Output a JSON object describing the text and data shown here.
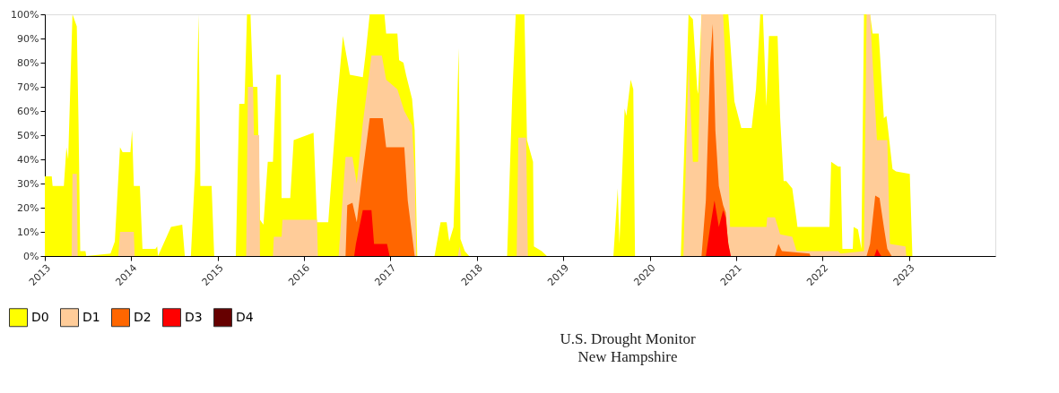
{
  "chart_data": {
    "type": "area",
    "title": "U.S. Drought Monitor",
    "subtitle": "New Hampshire",
    "xlim": [
      2013,
      2024
    ],
    "xticks": [
      2013,
      2014,
      2015,
      2016,
      2017,
      2018,
      2019,
      2020,
      2021,
      2022,
      2023
    ],
    "ylim": [
      0,
      100
    ],
    "yticks": [
      {
        "value": 0,
        "label": "0%"
      },
      {
        "value": 10,
        "label": "10%"
      },
      {
        "value": 20,
        "label": "20%"
      },
      {
        "value": 30,
        "label": "30%"
      },
      {
        "value": 40,
        "label": "40%"
      },
      {
        "value": 50,
        "label": "50%"
      },
      {
        "value": 60,
        "label": "60%"
      },
      {
        "value": 70,
        "label": "70%"
      },
      {
        "value": 80,
        "label": "80%"
      },
      {
        "value": 90,
        "label": "90%"
      },
      {
        "value": 100,
        "label": "100%"
      }
    ],
    "legend": "bottom left",
    "series": [
      {
        "name": "D0",
        "color": "#ffff00",
        "x": [
          2013.0,
          2013.08,
          2013.09,
          2013.22,
          2013.25,
          2013.27,
          2013.32,
          2013.37,
          2013.39,
          2013.41,
          2013.47,
          2013.48,
          2013.76,
          2013.81,
          2013.87,
          2013.9,
          2013.99,
          2014.01,
          2014.03,
          2014.1,
          2014.13,
          2014.28,
          2014.3,
          2014.31,
          2014.46,
          2014.59,
          2014.62,
          2014.69,
          2014.74,
          2014.78,
          2014.8,
          2014.93,
          2014.96,
          2015.21,
          2015.25,
          2015.31,
          2015.34,
          2015.38,
          2015.41,
          2015.46,
          2015.49,
          2015.53,
          2015.58,
          2015.64,
          2015.68,
          2015.73,
          2015.74,
          2015.84,
          2015.88,
          2016.11,
          2016.15,
          2016.28,
          2016.38,
          2016.45,
          2016.53,
          2016.68,
          2016.71,
          2016.76,
          2016.93,
          2016.95,
          2017.08,
          2017.1,
          2017.15,
          2017.18,
          2017.25,
          2017.28,
          2017.31,
          2017.51,
          2017.58,
          2017.65,
          2017.68,
          2017.73,
          2017.75,
          2017.79,
          2017.81,
          2017.86,
          2017.91,
          2018.08,
          2018.35,
          2018.41,
          2018.45,
          2018.55,
          2018.58,
          2018.65,
          2018.66,
          2018.75,
          2018.81,
          2019.58,
          2019.63,
          2019.65,
          2019.71,
          2019.73,
          2019.78,
          2019.81,
          2019.83,
          2020.36,
          2020.45,
          2020.5,
          2020.55,
          2020.56,
          2020.6,
          2020.91,
          2020.98,
          2021.06,
          2021.18,
          2021.23,
          2021.28,
          2021.31,
          2021.35,
          2021.38,
          2021.48,
          2021.51,
          2021.55,
          2021.58,
          2021.65,
          2021.7,
          2021.71,
          2022.08,
          2022.1,
          2022.18,
          2022.21,
          2022.23,
          2022.35,
          2022.36,
          2022.41,
          2022.45,
          2022.48,
          2022.55,
          2022.58,
          2022.65,
          2022.71,
          2022.74,
          2022.76,
          2022.81,
          2022.85,
          2023.01,
          2023.04
        ],
        "values": [
          33,
          33,
          29,
          29,
          45,
          40,
          100,
          95,
          55,
          2,
          2,
          0,
          1,
          6,
          45,
          43,
          43,
          52,
          29,
          29,
          3,
          3,
          4,
          0,
          12,
          13,
          0,
          0,
          36,
          100,
          29,
          29,
          0,
          0,
          63,
          63,
          100,
          100,
          70,
          70,
          15,
          13,
          39,
          39,
          75,
          75,
          24,
          24,
          48,
          51,
          14,
          14,
          63,
          91,
          75,
          74,
          83,
          100,
          100,
          92,
          92,
          81,
          80,
          75,
          65,
          52,
          0,
          0,
          14,
          14,
          6,
          12,
          35,
          86,
          7,
          2,
          0,
          0,
          0,
          67,
          100,
          100,
          48,
          39,
          4,
          2,
          0,
          0,
          28,
          5,
          61,
          58,
          73,
          69,
          0,
          0,
          100,
          98,
          69,
          67,
          100,
          100,
          64,
          53,
          53,
          69,
          100,
          100,
          62,
          91,
          91,
          57,
          31,
          31,
          28,
          15,
          12,
          12,
          39,
          37,
          37,
          3,
          3,
          12,
          11,
          3,
          100,
          100,
          92,
          92,
          57,
          58,
          52,
          36,
          35,
          34,
          0
        ]
      },
      {
        "name": "D1",
        "color": "#ffcc99",
        "x": [
          2013.31,
          2013.32,
          2013.37,
          2013.38,
          2013.85,
          2013.87,
          2014.03,
          2014.04,
          2015.33,
          2015.35,
          2015.41,
          2015.42,
          2015.48,
          2015.49,
          2015.64,
          2015.65,
          2015.74,
          2015.75,
          2016.15,
          2016.16,
          2016.4,
          2016.48,
          2016.56,
          2016.61,
          2016.68,
          2016.78,
          2016.9,
          2016.95,
          2017.08,
          2017.16,
          2017.25,
          2017.28,
          2017.3,
          2017.78,
          2017.8,
          2017.82,
          2018.46,
          2018.48,
          2018.57,
          2018.59,
          2020.39,
          2020.45,
          2020.5,
          2020.56,
          2020.6,
          2020.85,
          2020.9,
          2020.93,
          2021.35,
          2021.36,
          2021.45,
          2021.51,
          2021.65,
          2021.7,
          2022.18,
          2022.21,
          2022.48,
          2022.51,
          2022.55,
          2022.63,
          2022.75,
          2022.78,
          2022.96,
          2022.97
        ],
        "values": [
          0,
          34,
          34,
          0,
          0,
          10,
          10,
          0,
          0,
          70,
          70,
          50,
          50,
          0,
          0,
          8,
          8,
          15,
          15,
          0,
          0,
          41,
          41,
          30,
          55,
          83,
          83,
          73,
          69,
          60,
          54,
          35,
          0,
          0,
          4,
          0,
          0,
          49,
          49,
          0,
          0,
          80,
          39,
          39,
          100,
          100,
          60,
          12,
          12,
          16,
          16,
          9,
          8,
          2,
          2,
          1,
          2,
          100,
          100,
          48,
          48,
          5,
          4,
          0
        ]
      },
      {
        "name": "D2",
        "color": "#ff6600",
        "x": [
          2016.48,
          2016.5,
          2016.56,
          2016.61,
          2016.68,
          2016.76,
          2016.91,
          2016.95,
          2017.16,
          2017.2,
          2017.28,
          2020.6,
          2020.65,
          2020.7,
          2020.73,
          2020.76,
          2020.8,
          2020.85,
          2020.88,
          2020.9,
          2020.93,
          2021.45,
          2021.49,
          2021.53,
          2021.85,
          2021.86,
          2022.51,
          2022.55,
          2022.61,
          2022.66,
          2022.71,
          2022.75,
          2022.8
        ],
        "values": [
          0,
          21,
          22,
          14,
          35,
          57,
          57,
          45,
          45,
          23,
          0,
          0,
          23,
          80,
          96,
          52,
          29,
          21,
          18,
          8,
          0,
          0,
          5,
          2,
          1,
          0,
          0,
          5,
          25,
          24,
          12,
          3,
          0
        ]
      },
      {
        "name": "D3",
        "color": "#ff0000",
        "x": [
          2016.58,
          2016.6,
          2016.68,
          2016.78,
          2016.81,
          2016.96,
          2016.99,
          2020.65,
          2020.7,
          2020.75,
          2020.8,
          2020.85,
          2020.88,
          2020.91,
          2020.94,
          2022.6,
          2022.63,
          2022.66,
          2022.68
        ],
        "values": [
          0,
          5,
          19,
          19,
          5,
          5,
          0,
          0,
          12,
          23,
          12,
          19,
          16,
          5,
          0,
          0,
          3,
          1,
          0
        ]
      },
      {
        "name": "D4",
        "color": "#660000"
      }
    ]
  }
}
